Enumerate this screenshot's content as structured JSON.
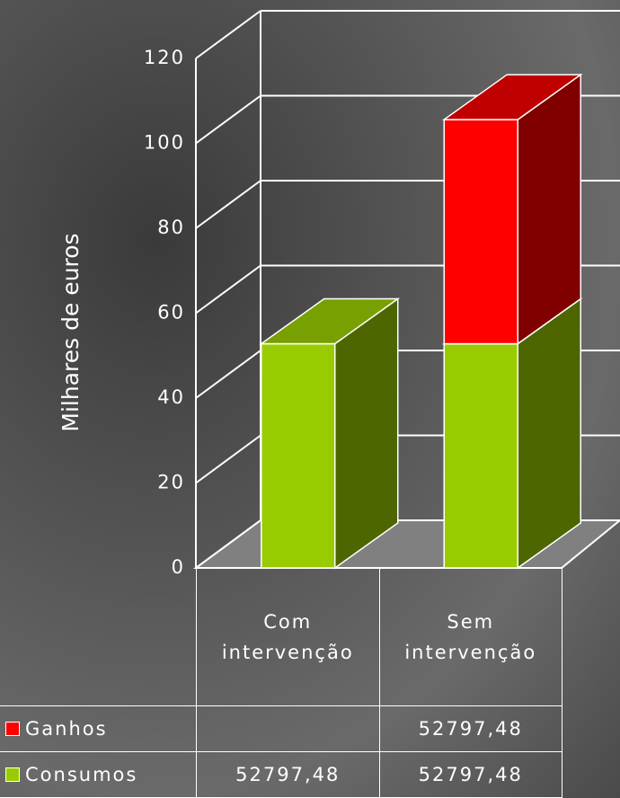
{
  "chart_data": {
    "type": "bar3d",
    "stacked": true,
    "y_label": "Milhares de euros",
    "categories": [
      "Com intervenção",
      "Sem intervenção"
    ],
    "series": [
      {
        "name": "Ganhos",
        "color": "#ff0000",
        "values": [
          null,
          52.79748
        ],
        "value_labels": [
          null,
          "52797,48"
        ]
      },
      {
        "name": "Consumos",
        "color": "#99cc00",
        "values": [
          52.79748,
          52.79748
        ],
        "value_labels": [
          "52797,48",
          "52797,48"
        ]
      }
    ],
    "ylim": [
      0,
      120
    ],
    "yticks": [
      0,
      20,
      40,
      60,
      80,
      100,
      120
    ],
    "grid": true
  }
}
